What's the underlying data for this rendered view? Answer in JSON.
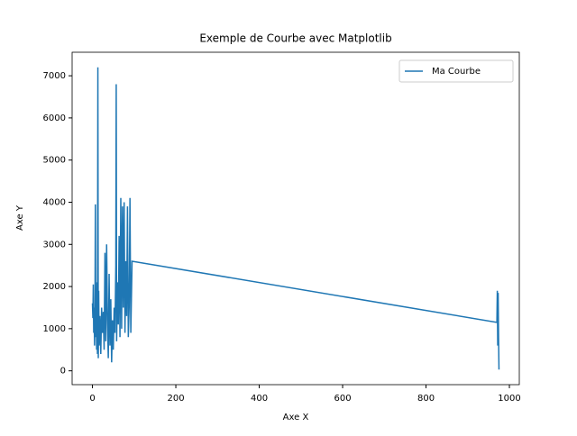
{
  "chart_data": {
    "type": "line",
    "title": "Exemple de Courbe avec Matplotlib",
    "x_label": "Axe X",
    "y_label": "Axe Y",
    "x": [
      0,
      1,
      2,
      3,
      4,
      5,
      6,
      7,
      8,
      9,
      10,
      11,
      12,
      13,
      14,
      15,
      16,
      18,
      20,
      22,
      24,
      26,
      28,
      30,
      32,
      34,
      36,
      38,
      40,
      42,
      44,
      46,
      48,
      50,
      52,
      54,
      56,
      57,
      58,
      60,
      62,
      64,
      66,
      68,
      70,
      72,
      74,
      76,
      78,
      80,
      82,
      84,
      86,
      88,
      90,
      92,
      95,
      970,
      971,
      972,
      973,
      974,
      975
    ],
    "series": [
      {
        "name": "Ma Courbe",
        "color": "#1f77b4",
        "values": [
          1600,
          1250,
          2050,
          900,
          1500,
          600,
          1200,
          3950,
          800,
          1700,
          500,
          2100,
          400,
          7200,
          300,
          1900,
          600,
          1300,
          400,
          1500,
          900,
          1400,
          500,
          2800,
          700,
          3000,
          1200,
          300,
          2300,
          600,
          1700,
          200,
          1200,
          500,
          1500,
          900,
          2500,
          6800,
          700,
          2100,
          1100,
          3200,
          800,
          4100,
          1000,
          3900,
          1500,
          4000,
          900,
          2600,
          1300,
          3900,
          800,
          1500,
          4100,
          900,
          2600,
          1150,
          1900,
          600,
          1850,
          800,
          30
        ]
      }
    ],
    "xlim": [
      -48.75,
      1023.75
    ],
    "ylim": [
      -328,
      7558
    ],
    "xticks": [
      0,
      200,
      400,
      600,
      800,
      1000
    ],
    "yticks": [
      0,
      1000,
      2000,
      3000,
      4000,
      5000,
      6000,
      7000
    ],
    "legend": "upper right"
  }
}
